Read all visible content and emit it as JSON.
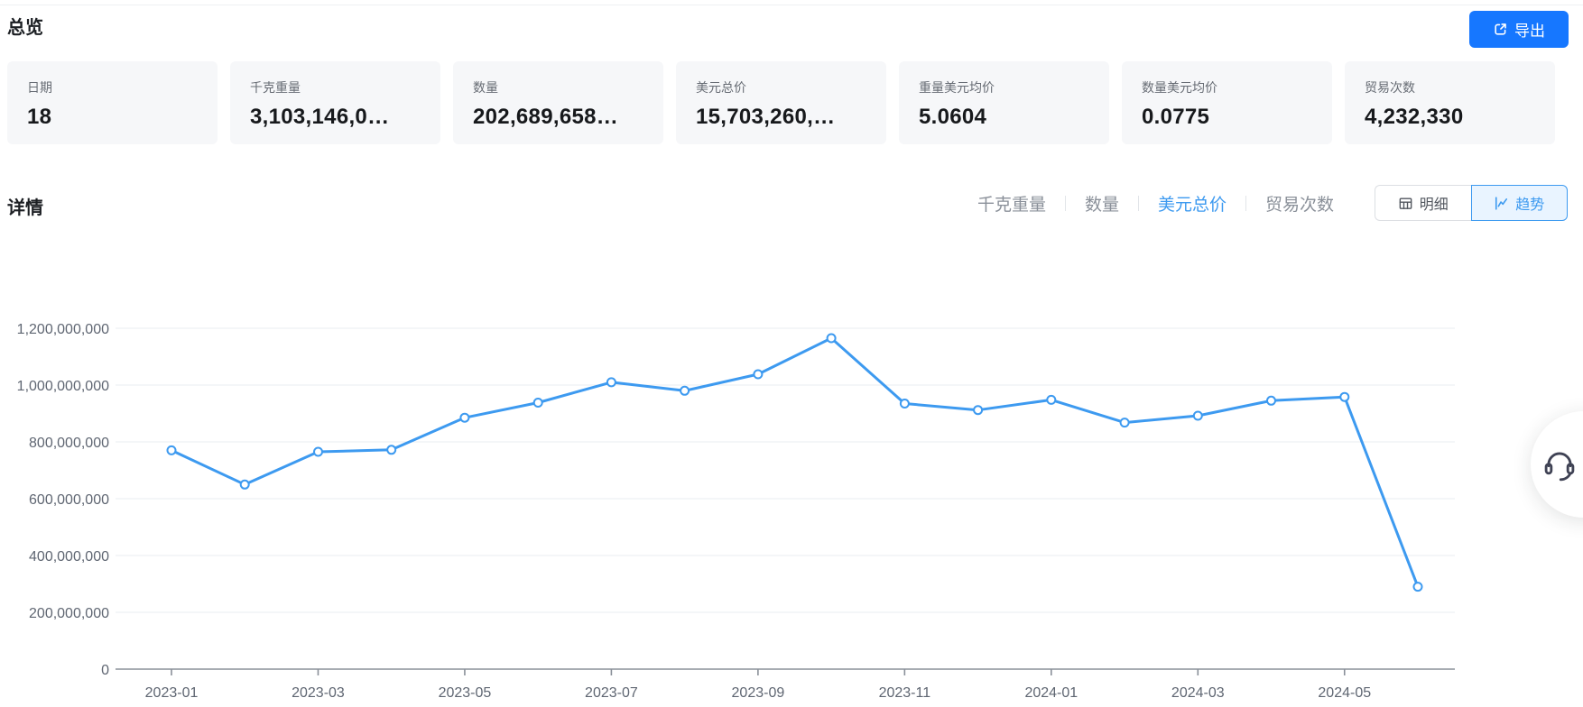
{
  "page": {
    "title": "总览",
    "details_title": "详情"
  },
  "export": {
    "label": "导出"
  },
  "stat_cards": [
    {
      "label": "日期",
      "value": "18"
    },
    {
      "label": "千克重量",
      "value": "3,103,146,0…"
    },
    {
      "label": "数量",
      "value": "202,689,658…"
    },
    {
      "label": "美元总价",
      "value": "15,703,260,…"
    },
    {
      "label": "重量美元均价",
      "value": "5.0604"
    },
    {
      "label": "数量美元均价",
      "value": "0.0775"
    },
    {
      "label": "贸易次数",
      "value": "4,232,330"
    }
  ],
  "metric_tabs": [
    {
      "label": "千克重量",
      "active": false
    },
    {
      "label": "数量",
      "active": false
    },
    {
      "label": "美元总价",
      "active": true
    },
    {
      "label": "贸易次数",
      "active": false
    }
  ],
  "view_toggle": {
    "detail_label": "明细",
    "trend_label": "趋势",
    "active": "trend"
  },
  "colors": {
    "accent_blue": "#1677ff",
    "line_blue": "#3d9af0",
    "active_tab_blue": "#3d9af0",
    "card_bg": "#f6f7f9",
    "grid_line": "#e9edf2",
    "axis_line": "#8a9099",
    "axis_text": "#5f6672"
  },
  "chart_data": {
    "type": "line",
    "title": "",
    "series_name": "美元总价",
    "categories": [
      "2023-01",
      "2023-02",
      "2023-03",
      "2023-04",
      "2023-05",
      "2023-06",
      "2023-07",
      "2023-08",
      "2023-09",
      "2023-10",
      "2023-11",
      "2023-12",
      "2024-01",
      "2024-02",
      "2024-03",
      "2024-04",
      "2024-05",
      "2024-06"
    ],
    "values": [
      770000000,
      650000000,
      765000000,
      772000000,
      885000000,
      938000000,
      1010000000,
      980000000,
      1038000000,
      1165000000,
      935000000,
      912000000,
      948000000,
      868000000,
      892000000,
      945000000,
      958000000,
      290000000
    ],
    "x_tick_labels": [
      "2023-01",
      "2023-03",
      "2023-05",
      "2023-07",
      "2023-09",
      "2023-11",
      "2024-01",
      "2024-03",
      "2024-05"
    ],
    "y_tick_labels": [
      "0",
      "200,000,000",
      "400,000,000",
      "600,000,000",
      "800,000,000",
      "1,000,000,000",
      "1,200,000,000"
    ],
    "ylim": [
      0,
      1300000000
    ],
    "grid": true,
    "legend": false
  }
}
